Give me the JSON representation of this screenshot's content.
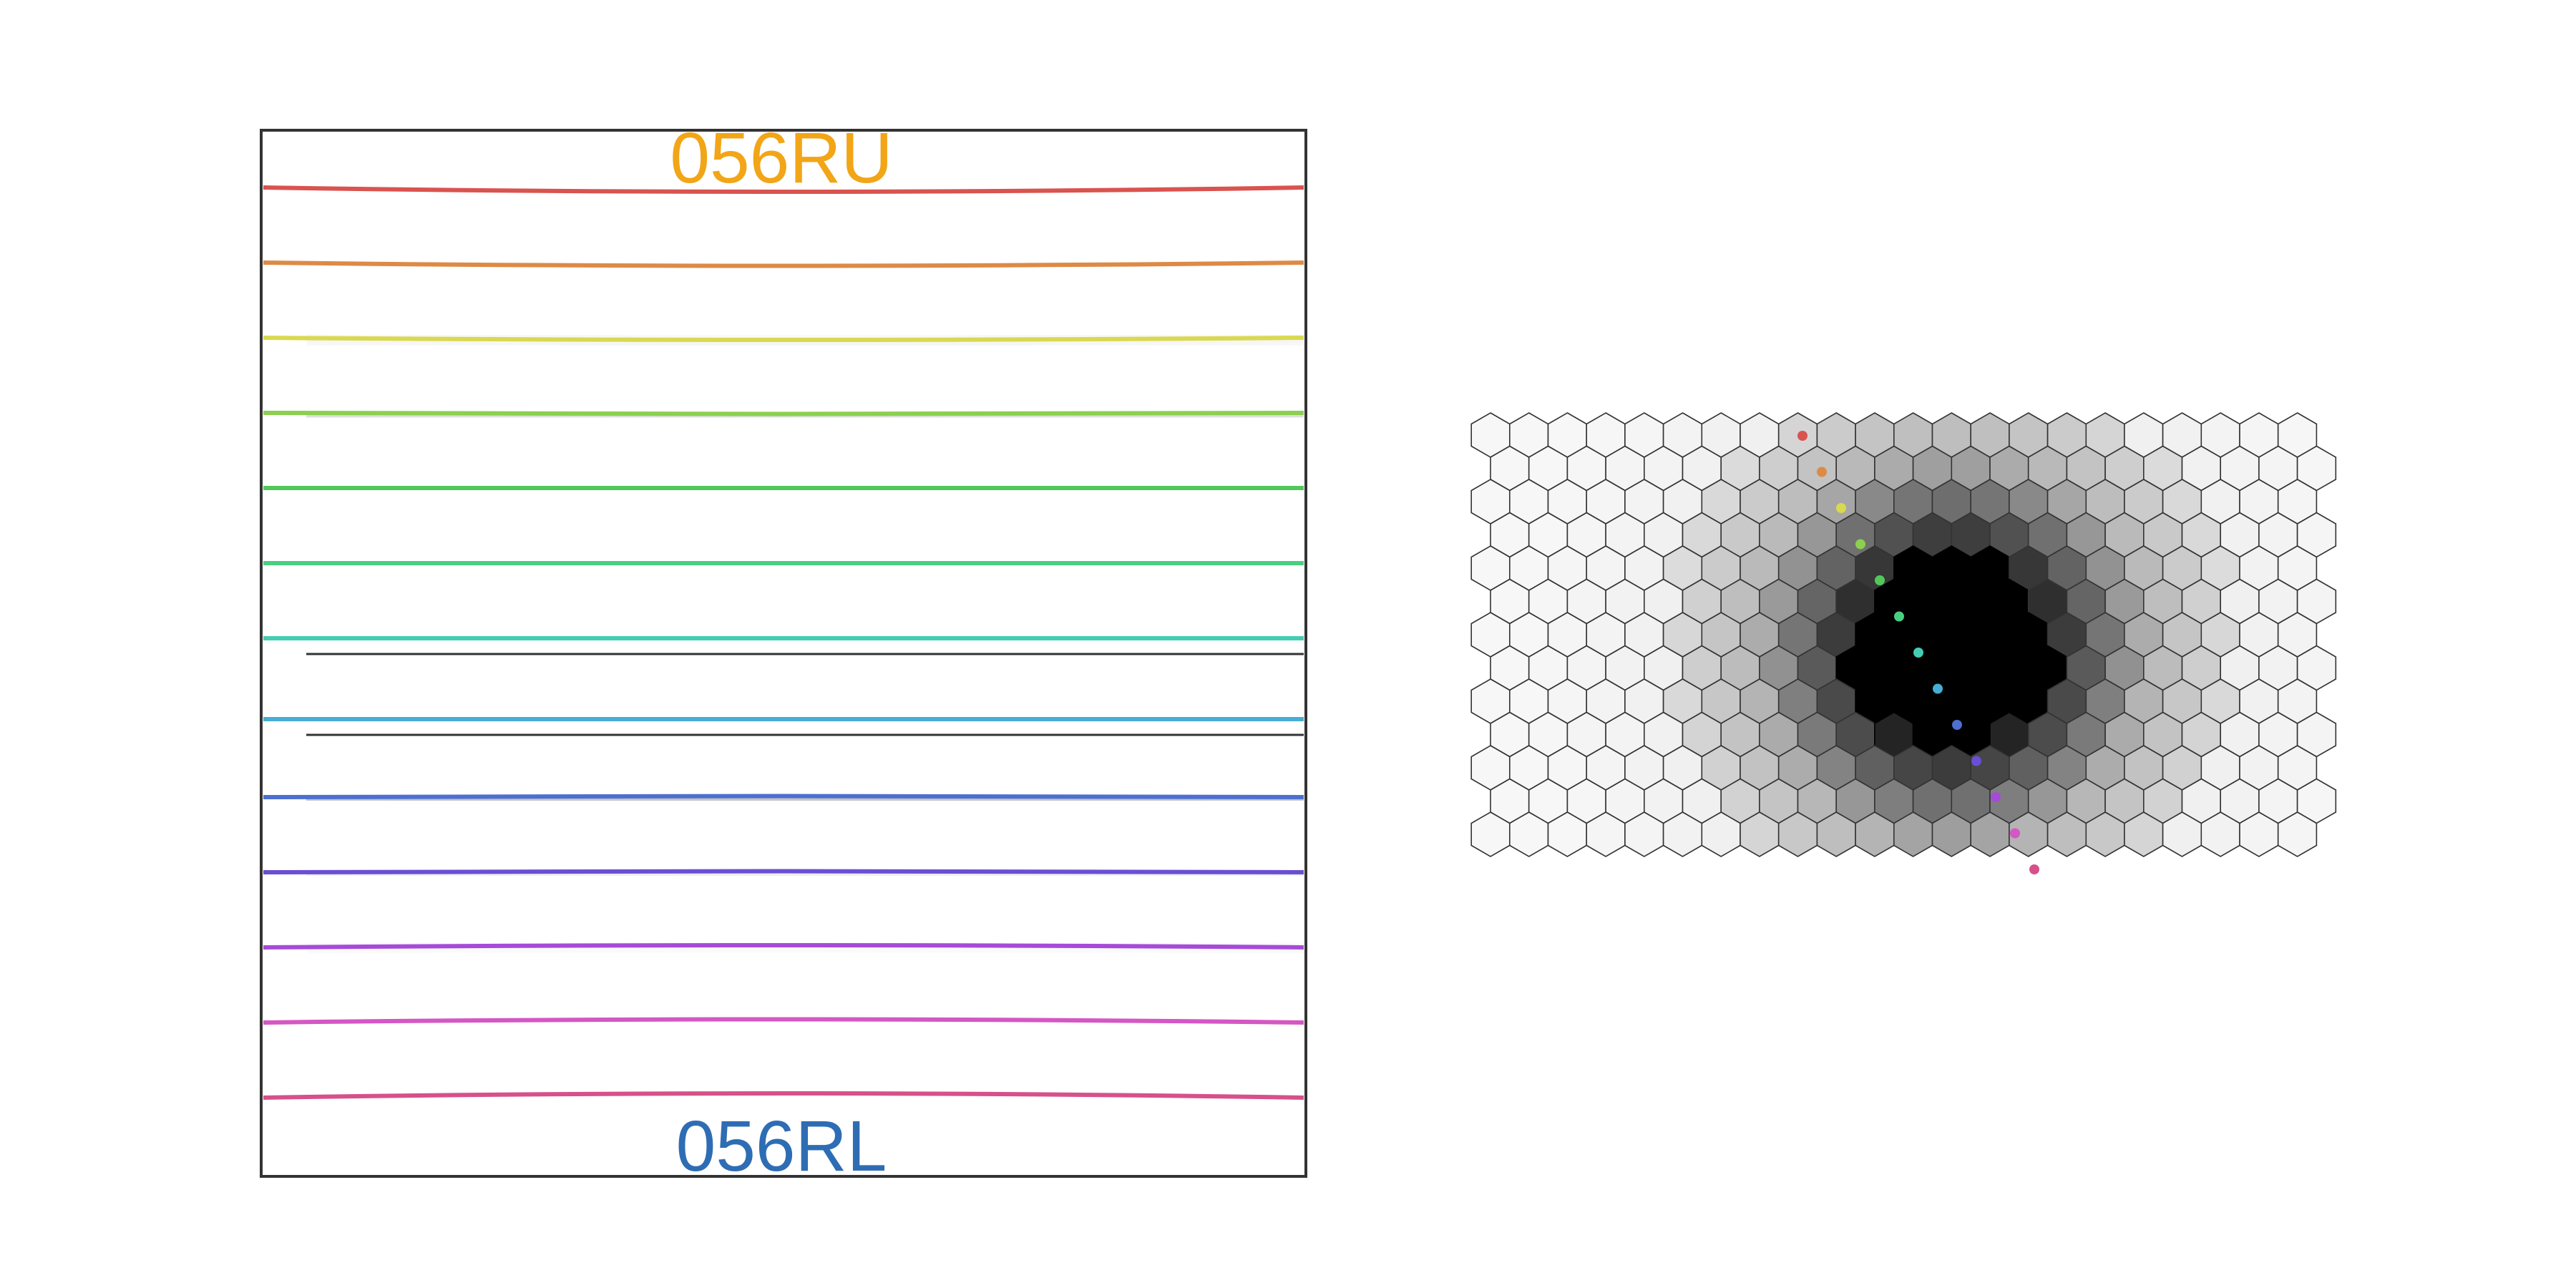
{
  "trace_panel": {
    "top_label": "056RU",
    "bottom_label": "056RL",
    "top_label_color": "#f2a516",
    "bottom_label_color": "#2e6db4",
    "traces": [
      {
        "color": "#d9534f",
        "bow": -4,
        "shadow": 0.0,
        "dark_line": false
      },
      {
        "color": "#dd8a46",
        "bow": -3,
        "shadow": 0.0,
        "dark_line": false
      },
      {
        "color": "#d9d950",
        "bow": -2,
        "shadow": 0.05,
        "dark_line": false
      },
      {
        "color": "#8bd04e",
        "bow": -1,
        "shadow": 0.18,
        "dark_line": false
      },
      {
        "color": "#52c85b",
        "bow": 0,
        "shadow": 0.28,
        "dark_line": false
      },
      {
        "color": "#49cf82",
        "bow": 0,
        "shadow": 0.38,
        "dark_line": false
      },
      {
        "color": "#45cdb3",
        "bow": 0,
        "shadow": 0.45,
        "dark_line": true
      },
      {
        "color": "#46aed4",
        "bow": 0,
        "shadow": 0.45,
        "dark_line": true
      },
      {
        "color": "#4d6fd0",
        "bow": 1,
        "shadow": 0.3,
        "dark_line": false
      },
      {
        "color": "#6a4fd4",
        "bow": 1,
        "shadow": 0.08,
        "dark_line": false
      },
      {
        "color": "#a64bd8",
        "bow": 2,
        "shadow": 0.03,
        "dark_line": false
      },
      {
        "color": "#d457c3",
        "bow": 3,
        "shadow": 0.0,
        "dark_line": false
      },
      {
        "color": "#d7508a",
        "bow": 4,
        "shadow": 0.0,
        "dark_line": false
      }
    ]
  },
  "hex_panel": {
    "rows": 13,
    "cols": 22,
    "intensity_center": {
      "row": 6.5,
      "col": 11.5
    },
    "colors": {
      "edge": "#333333",
      "background": "#f7f7f7"
    },
    "fiber_dots": [
      {
        "color": "#d9534f"
      },
      {
        "color": "#dd8a46"
      },
      {
        "color": "#d9d950"
      },
      {
        "color": "#8bd04e"
      },
      {
        "color": "#52c85b"
      },
      {
        "color": "#49cf82"
      },
      {
        "color": "#45cdb3"
      },
      {
        "color": "#46aed4"
      },
      {
        "color": "#4d6fd0"
      },
      {
        "color": "#6a4fd4"
      },
      {
        "color": "#a64bd8"
      },
      {
        "color": "#d457c3"
      },
      {
        "color": "#d7508a"
      }
    ]
  }
}
